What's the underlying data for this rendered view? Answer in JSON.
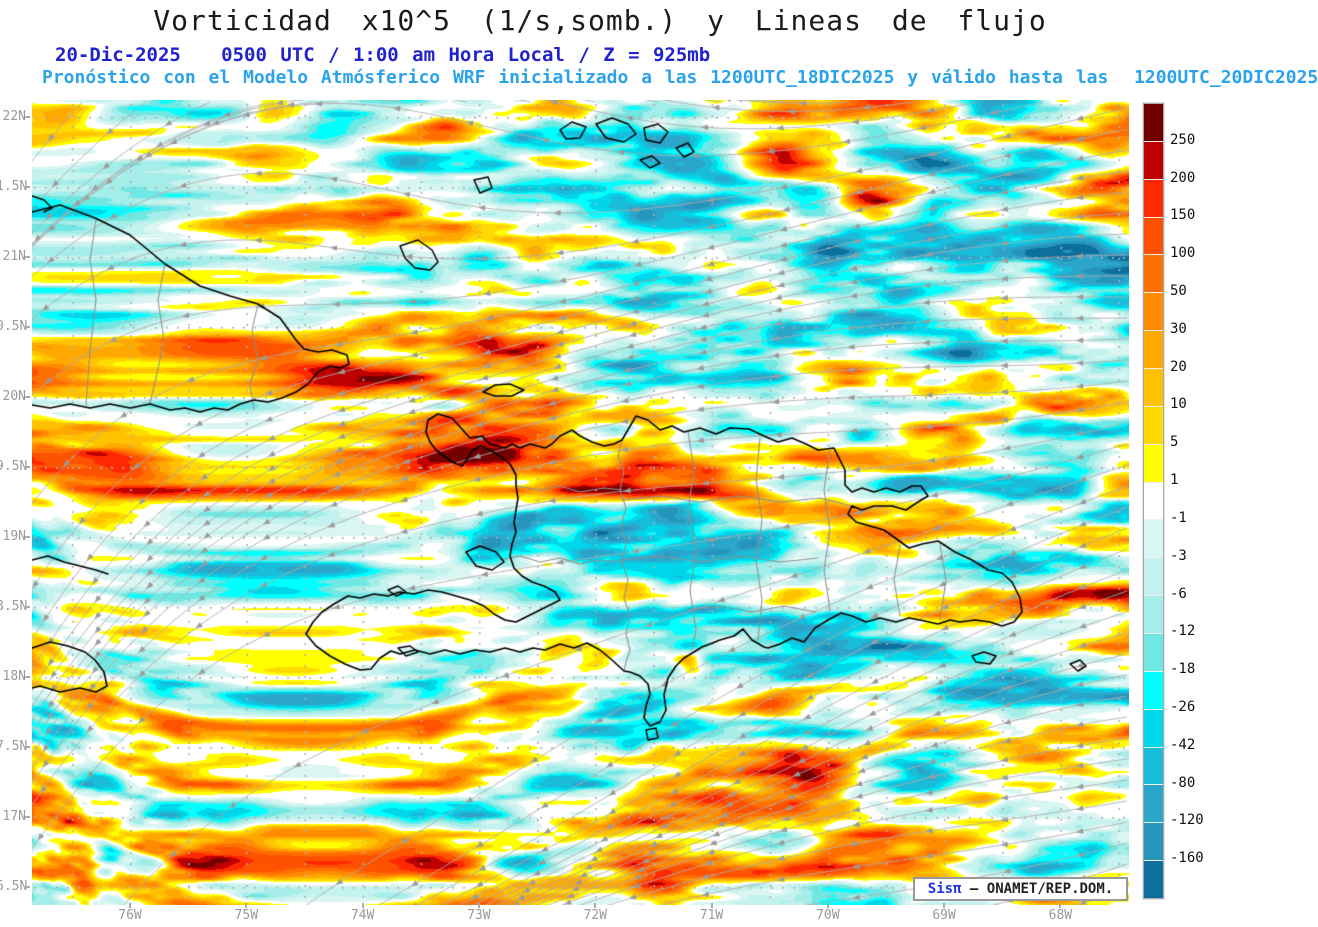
{
  "title": "Vorticidad x10^5 (1/s,somb.) y Lineas de flujo",
  "subtitle_datetime": "20-Dic-2025   0500 UTC / 1:00 am Hora Local / Z = 925mb",
  "subtitle_model": "Pronóstico con el Modelo Atmósferico WRF inicializado a las 1200UTC_18DIC2025 y válido hasta las  1200UTC_20DIC2025",
  "watermark": {
    "brand": "Sisπ",
    "text": "— ONAMET/REP.DOM."
  },
  "axes": {
    "y_labels": [
      "22N",
      "1.5N",
      "21N",
      "0.5N",
      "20N",
      "9.5N",
      "19N",
      "8.5N",
      "18N",
      "7.5N",
      "17N",
      "6.5N"
    ],
    "x_labels": [
      "76W",
      "75W",
      "74W",
      "73W",
      "72W",
      "71W",
      "70W",
      "69W",
      "68W"
    ]
  },
  "colorbar": {
    "tick_labels": [
      "250",
      "200",
      "150",
      "100",
      "50",
      "30",
      "20",
      "10",
      "5",
      "1",
      "-1",
      "-3",
      "-6",
      "-12",
      "-18",
      "-26",
      "-42",
      "-80",
      "-120",
      "-160"
    ],
    "palette_top_to_bottom": [
      "#730000",
      "#bf0000",
      "#ff2800",
      "#ff5200",
      "#ff6f00",
      "#ff8c00",
      "#ffa800",
      "#ffc100",
      "#ffda00",
      "#ffff00",
      "#ffffff",
      "#daf6f3",
      "#c4f2ee",
      "#a4ede9",
      "#6fe8e3",
      "#00ffff",
      "#00d6e9",
      "#19bcd9",
      "#2ba6ca",
      "#2695bc",
      "#0d6f9d"
    ]
  },
  "colors": {
    "subtitle_datetime": "#2222cc",
    "subtitle_model": "#2ba3ea",
    "axis_label": "#999999",
    "coastline": "#000000",
    "province_border": "#909090",
    "streamline": "#adadad"
  }
}
